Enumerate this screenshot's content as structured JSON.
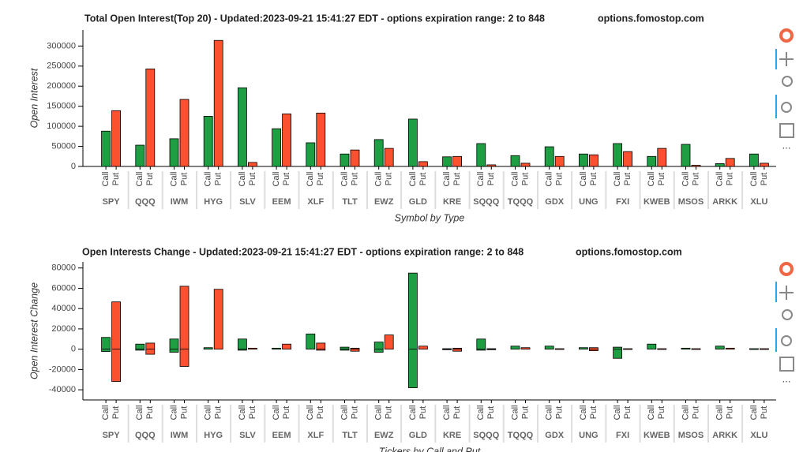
{
  "chart_data": [
    {
      "type": "bar",
      "title": "Total Open Interest(Top 20) - Updated:2023-09-21 15:41:27 EDT - options expiration range: 2 to 848",
      "source": "options.fomostop.com",
      "ylabel": "Open Interest",
      "xlabel": "Symbol by Type",
      "categories": [
        "SPY",
        "QQQ",
        "IWM",
        "HYG",
        "SLV",
        "EEM",
        "XLF",
        "TLT",
        "EWZ",
        "GLD",
        "KRE",
        "SQQQ",
        "TQQQ",
        "GDX",
        "UNG",
        "FXI",
        "KWEB",
        "MSOS",
        "ARKK",
        "XLU"
      ],
      "series": [
        {
          "name": "Call",
          "color": "#1f9e44",
          "values": [
            88000,
            53000,
            69000,
            125000,
            196000,
            94000,
            59000,
            31000,
            67000,
            118000,
            24000,
            57000,
            27000,
            49000,
            31000,
            57000,
            25000,
            55000,
            7000,
            31000
          ]
        },
        {
          "name": "Put",
          "color": "#fc5130",
          "values": [
            139000,
            243000,
            167000,
            314000,
            10000,
            131000,
            133000,
            41000,
            45000,
            12000,
            25000,
            4000,
            8000,
            25000,
            29000,
            37000,
            45000,
            3000,
            20000,
            8000
          ]
        }
      ],
      "ylim": [
        0,
        340000
      ],
      "yticks": [
        0,
        50000,
        100000,
        150000,
        200000,
        250000,
        300000
      ]
    },
    {
      "type": "bar",
      "title": "Open Interests Change - Updated:2023-09-21 15:41:27 EDT - options expiration range: 2 to 848",
      "source": "options.fomostop.com",
      "ylabel": "Open Interest Change",
      "xlabel": "Tickers by Call and Put",
      "categories": [
        "SPY",
        "QQQ",
        "IWM",
        "HYG",
        "SLV",
        "EEM",
        "XLF",
        "TLT",
        "EWZ",
        "GLD",
        "KRE",
        "SQQQ",
        "TQQQ",
        "GDX",
        "UNG",
        "FXI",
        "KWEB",
        "MSOS",
        "ARKK",
        "XLU"
      ],
      "series": [
        {
          "name": "Call",
          "color": "#1f9e44",
          "values": [
            [
              -2300,
              11600
            ],
            [
              -1000,
              5000
            ],
            [
              -3000,
              10000
            ],
            [
              0,
              1500
            ],
            [
              -1000,
              10000
            ],
            [
              0,
              1000
            ],
            [
              0,
              15000
            ],
            [
              -1000,
              2000
            ],
            [
              -3000,
              7000
            ],
            [
              -38000,
              75000
            ],
            [
              -500,
              500
            ],
            [
              -1000,
              10000
            ],
            [
              0,
              3000
            ],
            [
              0,
              3000
            ],
            [
              0,
              1500
            ],
            [
              -9000,
              2000
            ],
            [
              0,
              5000
            ],
            [
              0,
              1000
            ],
            [
              0,
              3000
            ],
            [
              0,
              500
            ]
          ]
        },
        {
          "name": "Put",
          "color": "#fc5130",
          "values": [
            [
              -31800,
              46600
            ],
            [
              -5000,
              6000
            ],
            [
              -17000,
              62000
            ],
            [
              0,
              59000
            ],
            [
              0,
              1000
            ],
            [
              0,
              5000
            ],
            [
              -1000,
              6000
            ],
            [
              -2000,
              1000
            ],
            [
              0,
              14000
            ],
            [
              0,
              3000
            ],
            [
              -2000,
              1000
            ],
            [
              -500,
              500
            ],
            [
              0,
              1500
            ],
            [
              0,
              500
            ],
            [
              -1500,
              1500
            ],
            [
              0,
              500
            ],
            [
              0,
              500
            ],
            [
              0,
              500
            ],
            [
              0,
              1000
            ],
            [
              0,
              500
            ]
          ]
        }
      ],
      "ylim": [
        -50000,
        86000
      ],
      "yticks": [
        -40000,
        -20000,
        0,
        20000,
        40000,
        60000,
        80000
      ]
    }
  ]
}
